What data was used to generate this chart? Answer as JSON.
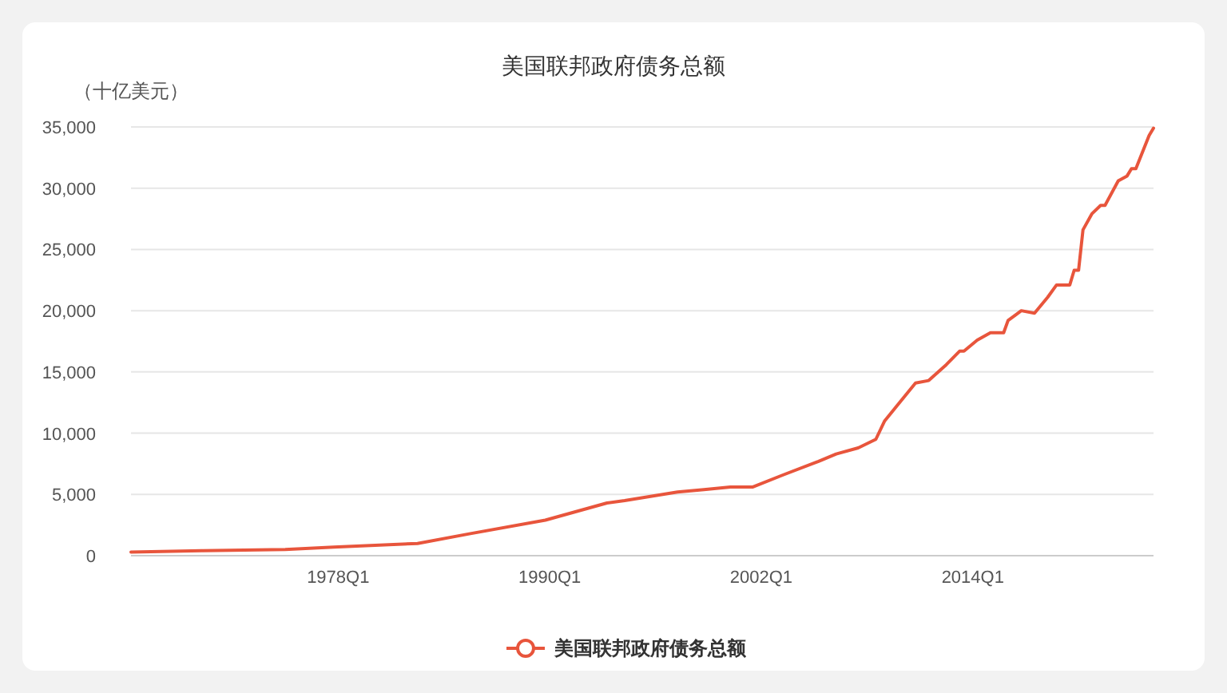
{
  "chart_data": {
    "type": "line",
    "title": "美国联邦政府债务总额",
    "ylabel": "（十亿美元）",
    "series": [
      {
        "name": "美国联邦政府债务总额",
        "color": "#e8553c",
        "x": [
          "1966-04",
          "1970-04",
          "1975-01",
          "1977-10",
          "1982-07",
          "1985-07",
          "1989-10",
          "1991-07",
          "1993-04",
          "1994-04",
          "1997-04",
          "1998-10",
          "2000-04",
          "2001-07",
          "2003-04",
          "2005-04",
          "2006-04",
          "2007-07",
          "2008-07",
          "2009-01",
          "2010-10",
          "2011-07",
          "2012-07",
          "2013-04",
          "2013-07",
          "2014-04",
          "2015-01",
          "2015-10",
          "2016-01",
          "2016-10",
          "2017-07",
          "2018-04",
          "2018-10",
          "2019-07",
          "2019-10",
          "2020-01",
          "2020-04",
          "2020-10",
          "2021-04",
          "2021-07",
          "2022-04",
          "2022-10",
          "2023-01",
          "2023-04",
          "2024-01",
          "2024-04"
        ],
        "values": [
          300,
          400,
          500,
          700,
          1000,
          1800,
          2900,
          3600,
          4300,
          4500,
          5200,
          5400,
          5600,
          5600,
          6600,
          7700,
          8300,
          8800,
          9500,
          11000,
          14100,
          14300,
          15600,
          16700,
          16700,
          17600,
          18200,
          18200,
          19200,
          20000,
          19800,
          21100,
          22100,
          22100,
          23300,
          23300,
          26600,
          27900,
          28600,
          28600,
          30600,
          31000,
          31600,
          31600,
          34300,
          34900
        ]
      }
    ],
    "xlim": [
      "1966-04",
      "2024-04"
    ],
    "xticks": [
      {
        "value": "1978-01",
        "label": "1978Q1"
      },
      {
        "value": "1990-01",
        "label": "1990Q1"
      },
      {
        "value": "2002-01",
        "label": "2002Q1"
      },
      {
        "value": "2014-01",
        "label": "2014Q1"
      }
    ],
    "ylim": [
      0,
      35000
    ],
    "yticks": [
      {
        "value": 0,
        "label": "0"
      },
      {
        "value": 5000,
        "label": "5,000"
      },
      {
        "value": 10000,
        "label": "10,000"
      },
      {
        "value": 15000,
        "label": "15,000"
      },
      {
        "value": 20000,
        "label": "20,000"
      },
      {
        "value": 25000,
        "label": "25,000"
      },
      {
        "value": 30000,
        "label": "30,000"
      },
      {
        "value": 35000,
        "label": "35,000"
      }
    ],
    "grid": "y",
    "legend": "bottom",
    "line_style": "solid"
  }
}
